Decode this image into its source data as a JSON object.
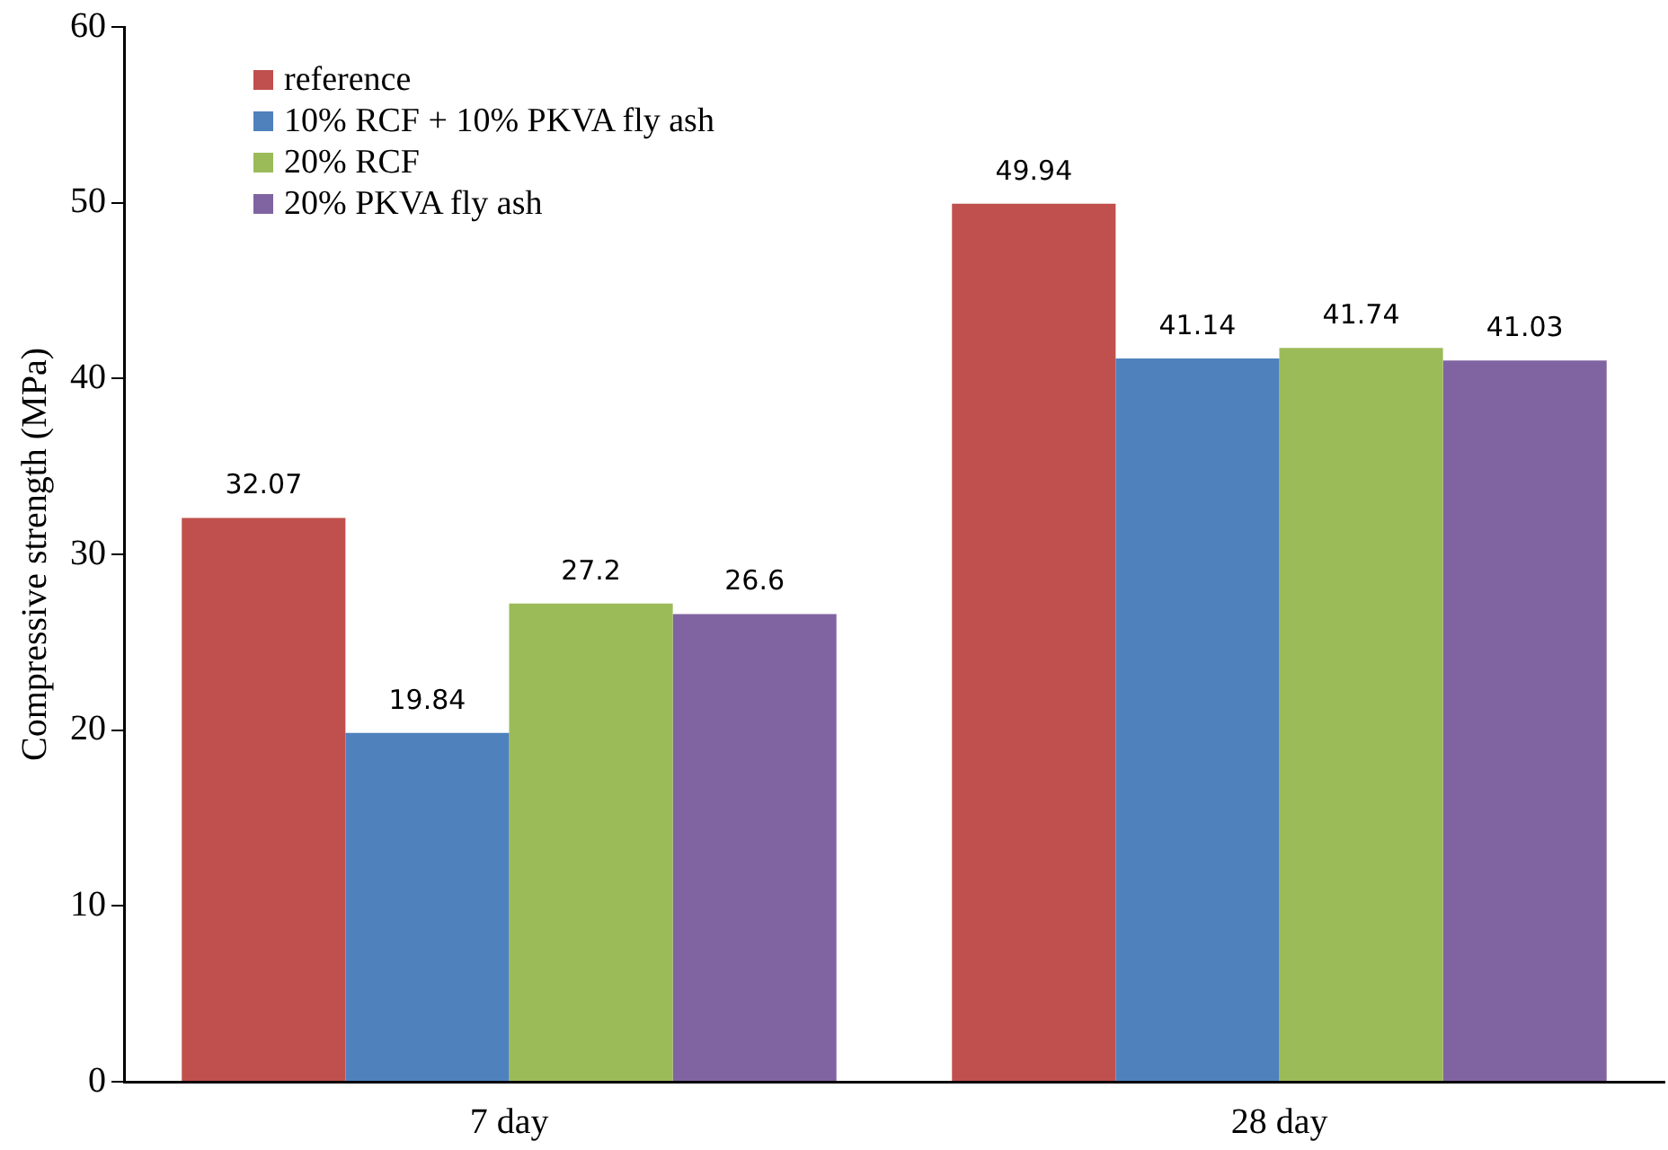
{
  "chart_data": {
    "type": "bar",
    "ylabel": "Compressive strength (MPa)",
    "categories": [
      "7 day",
      "28 day"
    ],
    "series": [
      {
        "name": "reference",
        "color": "#c0504d",
        "values": [
          32.07,
          49.94
        ]
      },
      {
        "name": "10% RCF + 10% PKVA fly ash",
        "color": "#4f81bd",
        "values": [
          19.84,
          41.14
        ]
      },
      {
        "name": "20% RCF",
        "color": "#9bbb59",
        "values": [
          27.2,
          41.74
        ]
      },
      {
        "name": "20% PKVA fly ash",
        "color": "#8064a2",
        "values": [
          26.6,
          41.03
        ]
      }
    ],
    "ylim": [
      0,
      60
    ],
    "yticks": [
      0,
      10,
      20,
      30,
      40,
      50,
      60
    ],
    "grid": false,
    "legend": "top left",
    "data_labels": true
  }
}
